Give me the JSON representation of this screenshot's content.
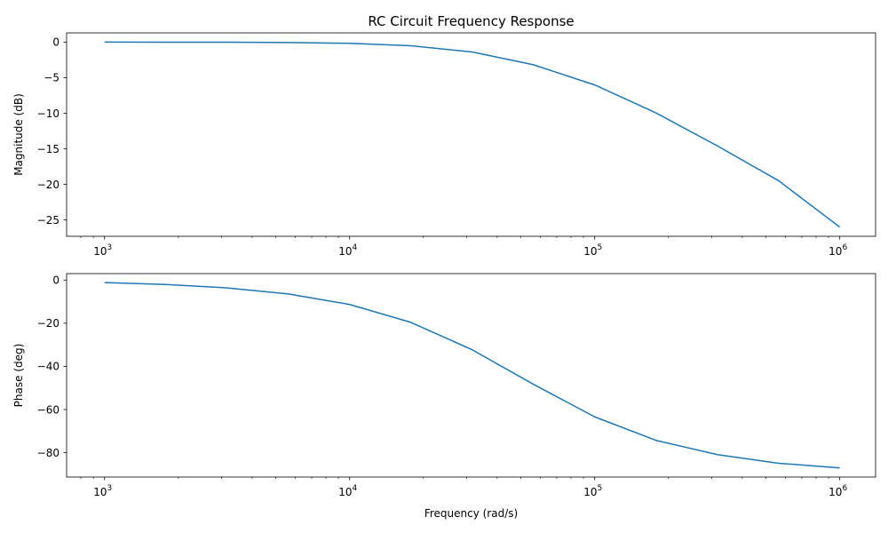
{
  "chart_data": [
    {
      "type": "line",
      "title": "RC Circuit Frequency Response",
      "xlabel": "",
      "ylabel": "Magnitude (dB)",
      "xscale": "log",
      "xlim": [
        700,
        1400000
      ],
      "ylim": [
        -27.3,
        1.3
      ],
      "grid": false,
      "color": "#1f77b4",
      "x_ticks": [
        1000,
        10000,
        100000,
        1000000
      ],
      "x_tick_labels": [
        {
          "base": "10",
          "exp": "3"
        },
        {
          "base": "10",
          "exp": "4"
        },
        {
          "base": "10",
          "exp": "5"
        },
        {
          "base": "10",
          "exp": "6"
        }
      ],
      "y_ticks": [
        0,
        -5,
        -10,
        -15,
        -20,
        -25
      ],
      "y_tick_labels": [
        "0",
        "−5",
        "−10",
        "−15",
        "−20",
        "−25"
      ],
      "series": [
        {
          "x": [
            1000,
            1778,
            3162,
            5623,
            10000,
            17783,
            31623,
            56234,
            100000,
            177828,
            316228,
            562341,
            1000000
          ],
          "values": [
            -0.0017,
            -0.0055,
            -0.0174,
            -0.0548,
            -0.17,
            -0.51,
            -1.39,
            -3.18,
            -6.02,
            -9.95,
            -14.58,
            -19.47,
            -26.0
          ]
        }
      ]
    },
    {
      "type": "line",
      "title": "",
      "xlabel": "Frequency (rad/s)",
      "ylabel": "Phase (deg)",
      "xscale": "log",
      "xlim": [
        700,
        1400000
      ],
      "ylim": [
        -91.3,
        3.0
      ],
      "grid": false,
      "color": "#1f77b4",
      "x_ticks": [
        1000,
        10000,
        100000,
        1000000
      ],
      "x_tick_labels": [
        {
          "base": "10",
          "exp": "3"
        },
        {
          "base": "10",
          "exp": "4"
        },
        {
          "base": "10",
          "exp": "5"
        },
        {
          "base": "10",
          "exp": "6"
        }
      ],
      "y_ticks": [
        0,
        -20,
        -40,
        -60,
        -80
      ],
      "y_tick_labels": [
        "0",
        "−20",
        "−40",
        "−60",
        "−80"
      ],
      "series": [
        {
          "x": [
            1000,
            1778,
            3162,
            5623,
            10000,
            17783,
            31623,
            56234,
            100000,
            177828,
            316228,
            562341,
            1000000
          ],
          "values": [
            -1.15,
            -2.04,
            -3.62,
            -6.41,
            -11.3,
            -19.6,
            -32.3,
            -48.3,
            -63.4,
            -74.3,
            -80.9,
            -84.9,
            -87.1
          ]
        }
      ]
    }
  ]
}
